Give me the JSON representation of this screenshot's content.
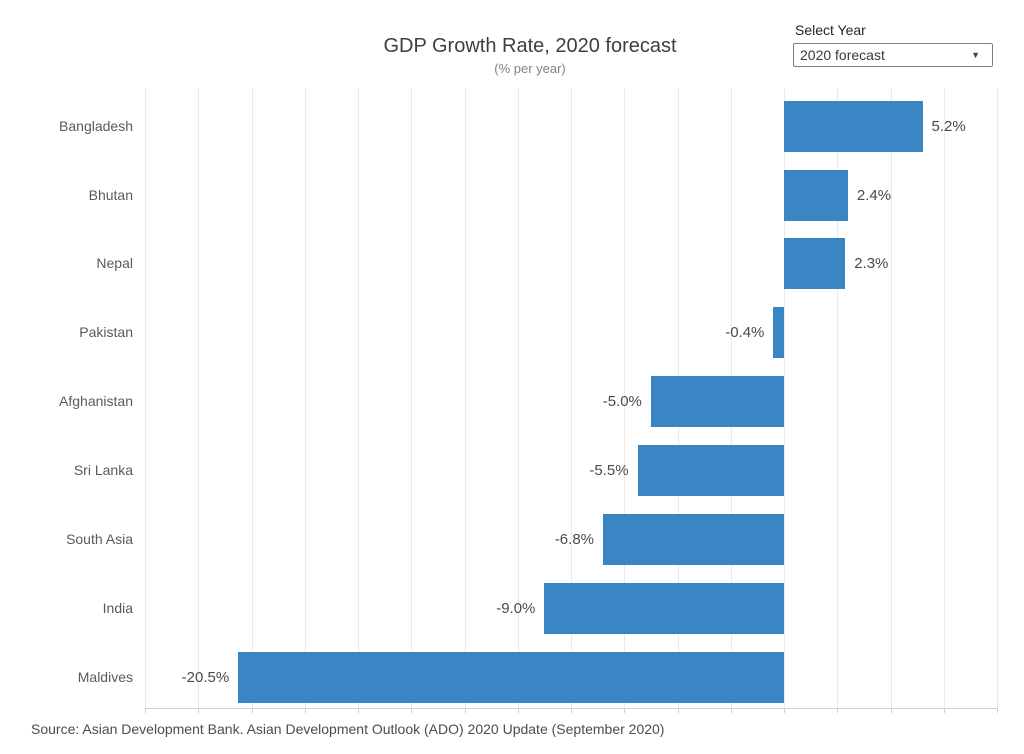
{
  "header": {
    "title": "GDP Growth Rate, 2020 forecast",
    "subtitle": "(% per year)"
  },
  "controls": {
    "select_year_label": "Select Year",
    "selected_option": "2020 forecast",
    "dropdown_caret_icon": "▼"
  },
  "source": "Source: Asian Development Bank. Asian Development Outlook (ADO) 2020 Update (September 2020)",
  "colors": {
    "bar": "#3a85c3",
    "grid": "#e9e9e9",
    "axis": "#cfcfcf",
    "category_label": "#5a5a5a",
    "value_label": "#4a4a4a",
    "title": "#3f3f3f",
    "subtitle": "#828282"
  },
  "chart_data": {
    "type": "bar",
    "orientation": "horizontal",
    "title": "GDP Growth Rate, 2020 forecast",
    "subtitle": "(% per year)",
    "categories": [
      "Bangladesh",
      "Bhutan",
      "Nepal",
      "Pakistan",
      "Afghanistan",
      "Sri Lanka",
      "South Asia",
      "India",
      "Maldives"
    ],
    "values": [
      5.2,
      2.4,
      2.3,
      -0.4,
      -5.0,
      -5.5,
      -6.8,
      -9.0,
      -20.5
    ],
    "value_labels": [
      "5.2%",
      "2.4%",
      "2.3%",
      "-0.4%",
      "-5.0%",
      "-5.5%",
      "-6.8%",
      "-9.0%",
      "-20.5%"
    ],
    "xlim": [
      -24,
      8
    ],
    "grid_step": 2,
    "grid": "vertical",
    "legend": "none",
    "value_label_position": "outside-end",
    "sorted": "descending"
  }
}
